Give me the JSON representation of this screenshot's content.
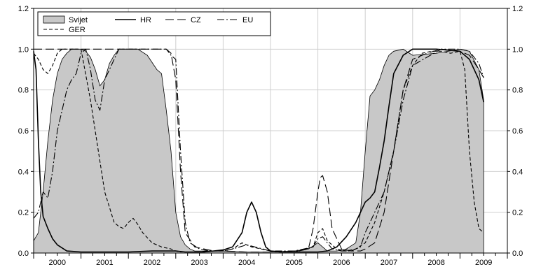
{
  "chart_data": {
    "type": "area",
    "title": "",
    "xlabel": "",
    "ylabel": "",
    "xlim": [
      2000.0,
      2010.0
    ],
    "ylim": [
      0,
      1.2
    ],
    "y_ticks": [
      "0.0",
      "0.2",
      "0.4",
      "0.6",
      "0.8",
      "1.0",
      "1.2"
    ],
    "x_categories": [
      "2000",
      "2001",
      "2002",
      "2003",
      "2004",
      "2005",
      "2006",
      "2007",
      "2008",
      "2009"
    ],
    "grid": true,
    "legend_position": "top-left",
    "series": [
      {
        "name": "Svijet",
        "style": "area",
        "color": "#c8c8c8",
        "x": [
          2000.0,
          2000.1,
          2000.2,
          2000.3,
          2000.4,
          2000.5,
          2000.6,
          2000.7,
          2000.8,
          2000.9,
          2001.0,
          2001.1,
          2001.2,
          2001.3,
          2001.4,
          2001.5,
          2001.6,
          2001.7,
          2001.8,
          2001.9,
          2002.0,
          2002.2,
          2002.4,
          2002.6,
          2002.7,
          2002.8,
          2002.9,
          2003.0,
          2003.1,
          2003.2,
          2003.3,
          2003.4,
          2003.5,
          2003.8,
          2004.0,
          2004.5,
          2005.0,
          2005.5,
          2005.8,
          2006.0,
          2006.1,
          2006.2,
          2006.4,
          2006.6,
          2006.8,
          2006.9,
          2007.0,
          2007.1,
          2007.2,
          2007.3,
          2007.4,
          2007.5,
          2007.6,
          2007.8,
          2008.0,
          2008.5,
          2009.0,
          2009.2,
          2009.4,
          2009.5
        ],
        "values": [
          0.06,
          0.1,
          0.3,
          0.55,
          0.75,
          0.88,
          0.95,
          0.98,
          1.0,
          1.0,
          1.0,
          0.99,
          0.96,
          0.9,
          0.82,
          0.85,
          0.93,
          0.97,
          1.0,
          1.0,
          1.0,
          1.0,
          0.97,
          0.9,
          0.88,
          0.7,
          0.5,
          0.2,
          0.08,
          0.04,
          0.02,
          0.01,
          0.01,
          0.01,
          0.01,
          0.005,
          0.005,
          0.01,
          0.02,
          0.05,
          0.03,
          0.01,
          0.01,
          0.02,
          0.05,
          0.2,
          0.5,
          0.77,
          0.8,
          0.85,
          0.92,
          0.97,
          0.99,
          1.0,
          0.97,
          0.98,
          1.0,
          0.99,
          0.9,
          0.75
        ]
      },
      {
        "name": "HR",
        "style": "solid",
        "color": "#000000",
        "x": [
          2000.0,
          2000.05,
          2000.1,
          2000.15,
          2000.2,
          2000.3,
          2000.4,
          2000.5,
          2000.7,
          2001.0,
          2001.5,
          2002.0,
          2002.5,
          2003.0,
          2003.2,
          2003.4,
          2003.6,
          2003.8,
          2004.0,
          2004.2,
          2004.4,
          2004.5,
          2004.6,
          2004.7,
          2004.8,
          2004.9,
          2005.0,
          2005.2,
          2005.5,
          2005.8,
          2006.0,
          2006.2,
          2006.4,
          2006.6,
          2006.8,
          2007.0,
          2007.1,
          2007.2,
          2007.3,
          2007.4,
          2007.5,
          2007.6,
          2007.8,
          2008.0,
          2008.5,
          2009.0,
          2009.2,
          2009.4,
          2009.5
        ],
        "values": [
          0.99,
          0.9,
          0.55,
          0.3,
          0.18,
          0.12,
          0.07,
          0.04,
          0.01,
          0.005,
          0.005,
          0.005,
          0.01,
          0.01,
          0.005,
          0.005,
          0.005,
          0.01,
          0.015,
          0.03,
          0.1,
          0.2,
          0.25,
          0.2,
          0.1,
          0.03,
          0.01,
          0.005,
          0.005,
          0.005,
          0.005,
          0.01,
          0.03,
          0.08,
          0.15,
          0.25,
          0.27,
          0.3,
          0.42,
          0.55,
          0.72,
          0.88,
          0.97,
          1.0,
          1.0,
          0.99,
          0.95,
          0.85,
          0.74
        ]
      },
      {
        "name": "CZ",
        "style": "longdash",
        "color": "#000000",
        "x": [
          2000.0,
          2000.2,
          2000.5,
          2000.8,
          2001.0,
          2001.3,
          2001.5,
          2001.8,
          2002.0,
          2002.5,
          2002.8,
          2002.9,
          2003.0,
          2003.1,
          2003.2,
          2003.4,
          2003.8,
          2004.0,
          2004.5,
          2005.0,
          2005.5,
          2005.8,
          2005.9,
          2006.0,
          2006.05,
          2006.1,
          2006.2,
          2006.3,
          2006.5,
          2006.7,
          2006.9,
          2007.0,
          2007.2,
          2007.4,
          2007.6,
          2007.8,
          2008.0,
          2008.3,
          2008.6,
          2009.0,
          2009.2,
          2009.4,
          2009.5
        ],
        "values": [
          1.0,
          1.0,
          1.0,
          1.0,
          1.0,
          1.0,
          1.0,
          1.0,
          1.0,
          1.0,
          1.0,
          0.98,
          0.85,
          0.4,
          0.1,
          0.03,
          0.01,
          0.01,
          0.005,
          0.005,
          0.005,
          0.02,
          0.12,
          0.3,
          0.37,
          0.38,
          0.3,
          0.12,
          0.02,
          0.01,
          0.01,
          0.02,
          0.05,
          0.2,
          0.5,
          0.8,
          0.95,
          0.98,
          1.0,
          0.99,
          0.97,
          0.9,
          0.86
        ]
      },
      {
        "name": "EU",
        "style": "dashdot",
        "color": "#000000",
        "x": [
          2000.0,
          2000.1,
          2000.2,
          2000.3,
          2000.4,
          2000.5,
          2000.6,
          2000.7,
          2000.8,
          2000.9,
          2001.0,
          2001.1,
          2001.2,
          2001.3,
          2001.4,
          2001.5,
          2001.6,
          2001.7,
          2001.8,
          2001.9,
          2002.0,
          2002.2,
          2002.5,
          2002.8,
          2002.9,
          2003.0,
          2003.1,
          2003.2,
          2003.3,
          2003.5,
          2003.7,
          2003.9,
          2004.0,
          2004.2,
          2004.5,
          2005.0,
          2005.5,
          2005.9,
          2006.0,
          2006.1,
          2006.2,
          2006.3,
          2006.5,
          2006.7,
          2006.9,
          2007.0,
          2007.1,
          2007.2,
          2007.3,
          2007.4,
          2007.6,
          2007.8,
          2008.0,
          2008.3,
          2008.6,
          2009.0,
          2009.2,
          2009.4,
          2009.5
        ],
        "values": [
          0.17,
          0.2,
          0.3,
          0.27,
          0.4,
          0.6,
          0.7,
          0.8,
          0.85,
          0.88,
          0.98,
          1.0,
          0.9,
          0.75,
          0.7,
          0.85,
          0.9,
          0.95,
          1.0,
          1.0,
          1.0,
          1.0,
          1.0,
          1.0,
          0.97,
          0.95,
          0.5,
          0.15,
          0.05,
          0.02,
          0.01,
          0.01,
          0.01,
          0.02,
          0.04,
          0.01,
          0.01,
          0.03,
          0.07,
          0.08,
          0.05,
          0.02,
          0.01,
          0.01,
          0.03,
          0.1,
          0.15,
          0.2,
          0.25,
          0.3,
          0.5,
          0.75,
          0.92,
          0.96,
          1.0,
          1.0,
          0.99,
          0.93,
          0.86
        ]
      },
      {
        "name": "GER",
        "style": "dash",
        "color": "#000000",
        "x": [
          2000.0,
          2000.1,
          2000.2,
          2000.3,
          2000.4,
          2000.5,
          2000.6,
          2000.8,
          2001.0,
          2001.2,
          2001.4,
          2001.5,
          2001.7,
          2001.8,
          2001.9,
          2002.0,
          2002.1,
          2002.2,
          2002.3,
          2002.5,
          2002.7,
          2002.9,
          2003.0,
          2003.1,
          2003.3,
          2003.5,
          2003.8,
          2004.0,
          2004.2,
          2004.4,
          2004.6,
          2005.0,
          2005.5,
          2005.9,
          2006.0,
          2006.1,
          2006.2,
          2006.4,
          2006.6,
          2006.8,
          2007.0,
          2007.2,
          2007.4,
          2007.6,
          2007.8,
          2008.0,
          2008.2,
          2008.4,
          2008.6,
          2008.8,
          2009.0,
          2009.1,
          2009.2,
          2009.3,
          2009.4,
          2009.5
        ],
        "values": [
          0.98,
          0.95,
          0.9,
          0.88,
          0.92,
          0.98,
          1.0,
          1.0,
          1.0,
          0.75,
          0.45,
          0.3,
          0.15,
          0.13,
          0.12,
          0.15,
          0.17,
          0.14,
          0.1,
          0.05,
          0.03,
          0.02,
          0.01,
          0.005,
          0.005,
          0.005,
          0.01,
          0.01,
          0.02,
          0.05,
          0.03,
          0.01,
          0.005,
          0.03,
          0.1,
          0.12,
          0.06,
          0.02,
          0.01,
          0.02,
          0.05,
          0.15,
          0.3,
          0.5,
          0.8,
          0.92,
          0.98,
          0.99,
          0.99,
          0.98,
          0.99,
          0.9,
          0.5,
          0.25,
          0.12,
          0.1
        ]
      }
    ]
  }
}
